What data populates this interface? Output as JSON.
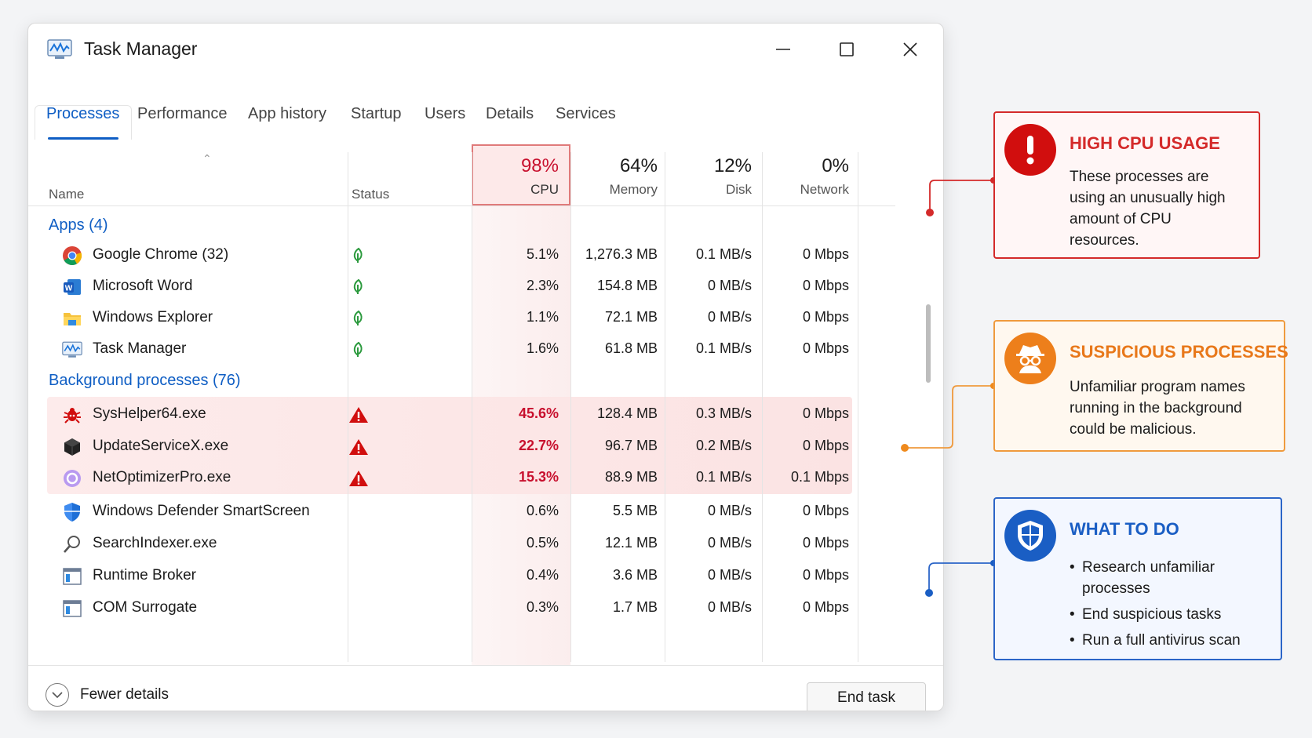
{
  "window": {
    "title": "Task Manager",
    "controls": {
      "minimize": "minimize",
      "maximize": "maximize",
      "close": "close"
    }
  },
  "tabs": [
    {
      "label": "Processes",
      "active": true
    },
    {
      "label": "Performance"
    },
    {
      "label": "App history"
    },
    {
      "label": "Startup"
    },
    {
      "label": "Users"
    },
    {
      "label": "Details"
    },
    {
      "label": "Services"
    }
  ],
  "columns": {
    "name": "Name",
    "status": "Status",
    "cpu": {
      "pct": "98%",
      "label": "CPU"
    },
    "memory": {
      "pct": "64%",
      "label": "Memory"
    },
    "disk": {
      "pct": "12%",
      "label": "Disk"
    },
    "network": {
      "pct": "0%",
      "label": "Network"
    }
  },
  "groups": {
    "apps": "Apps (4)",
    "background": "Background processes (76)"
  },
  "apps": [
    {
      "name": "Google Chrome (32)",
      "icon": "chrome-icon",
      "status": "leaf-icon",
      "cpu": "5.1%",
      "memory": "1,276.3 MB",
      "disk": "0.1 MB/s",
      "network": "0 Mbps"
    },
    {
      "name": "Microsoft Word",
      "icon": "word-icon",
      "status": "leaf-icon",
      "cpu": "2.3%",
      "memory": "154.8 MB",
      "disk": "0 MB/s",
      "network": "0 Mbps"
    },
    {
      "name": "Windows Explorer",
      "icon": "folder-icon",
      "status": "leaf-icon",
      "cpu": "1.1%",
      "memory": "72.1 MB",
      "disk": "0 MB/s",
      "network": "0 Mbps"
    },
    {
      "name": "Task Manager",
      "icon": "task-manager-icon",
      "status": "leaf-icon",
      "cpu": "1.6%",
      "memory": "61.8 MB",
      "disk": "0.1 MB/s",
      "network": "0 Mbps"
    }
  ],
  "background": [
    {
      "name": "SysHelper64.exe",
      "icon": "bug-icon",
      "status": "warning-icon",
      "cpu": "45.6%",
      "memory": "128.4 MB",
      "disk": "0.3 MB/s",
      "network": "0 Mbps"
    },
    {
      "name": "UpdateServiceX.exe",
      "icon": "cube-icon",
      "status": "warning-icon",
      "cpu": "22.7%",
      "memory": "96.7 MB",
      "disk": "0.2 MB/s",
      "network": "0 Mbps"
    },
    {
      "name": "NetOptimizerPro.exe",
      "icon": "circle-icon",
      "status": "warning-icon",
      "cpu": "15.3%",
      "memory": "88.9 MB",
      "disk": "0.1 MB/s",
      "network": "0.1 Mbps"
    },
    {
      "name": "Windows Defender SmartScreen",
      "icon": "shield-icon",
      "status": "",
      "cpu": "0.6%",
      "memory": "5.5 MB",
      "disk": "0 MB/s",
      "network": "0 Mbps"
    },
    {
      "name": "SearchIndexer.exe",
      "icon": "search-icon",
      "status": "",
      "cpu": "0.5%",
      "memory": "12.1 MB",
      "disk": "0 MB/s",
      "network": "0 Mbps"
    },
    {
      "name": "Runtime Broker",
      "icon": "window-icon",
      "status": "",
      "cpu": "0.4%",
      "memory": "3.6 MB",
      "disk": "0 MB/s",
      "network": "0 Mbps"
    },
    {
      "name": "COM Surrogate",
      "icon": "window-icon",
      "status": "",
      "cpu": "0.3%",
      "memory": "1.7 MB",
      "disk": "0 MB/s",
      "network": "0 Mbps"
    }
  ],
  "footer": {
    "fewer_details": "Fewer details",
    "end_task": "End task"
  },
  "callouts": {
    "high_cpu": {
      "title": "HIGH CPU USAGE",
      "body": "These processes are using an unusually high amount of CPU resources.",
      "color": "#d42a2a"
    },
    "suspicious": {
      "title": "SUSPICIOUS PROCESSES",
      "body": "Unfamiliar program names running in the background could be malicious.",
      "color": "#e8781a"
    },
    "what_to_do": {
      "title": "WHAT TO DO",
      "items": [
        "Research unfamiliar processes",
        "End suspicious tasks",
        "Run a full antivirus scan"
      ],
      "color": "#1a5ec4"
    }
  }
}
